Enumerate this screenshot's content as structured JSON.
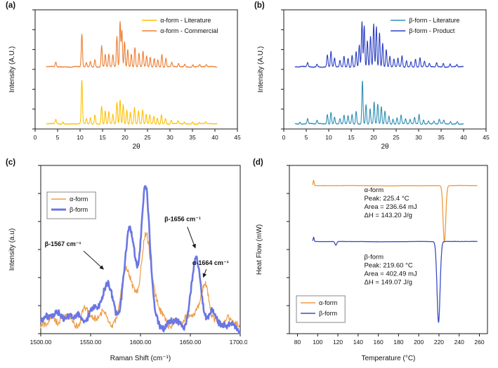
{
  "chart_data": [
    {
      "id": "xrd-alpha",
      "panel_label": "(a)",
      "type": "line",
      "kind": "xrd",
      "xlabel": "2θ",
      "ylabel": "Intensity (A.U.)",
      "xlim": [
        0,
        45
      ],
      "ylim": [
        0,
        2.78
      ],
      "xticks": [
        0,
        5,
        10,
        15,
        20,
        25,
        30,
        35,
        40,
        45
      ],
      "xtick_labels": [
        "0",
        "5",
        "10",
        "15",
        "20",
        "25",
        "30",
        "35",
        "40",
        "45"
      ],
      "legend": {
        "position": "top-right",
        "border": false,
        "entries": [
          {
            "label": "α-form - Literature",
            "color": "#FFC000",
            "lw": 1.5
          },
          {
            "label": "α-form - Commercial",
            "color": "#ED7D31",
            "lw": 1.5
          }
        ]
      },
      "series": [
        {
          "name": "alpha-literature",
          "color": "#FFC000",
          "lw": 1.1,
          "baseline": 0.12,
          "noise": 0.012,
          "seed": 11,
          "xstart": 2.5,
          "xend": 40.5,
          "n": 1300,
          "peak_width": 0.13,
          "peaks": [
            [
              4.6,
              0.1
            ],
            [
              6.2,
              0.05
            ],
            [
              10.4,
              1.0
            ],
            [
              11.4,
              0.12
            ],
            [
              12.3,
              0.15
            ],
            [
              13.3,
              0.2
            ],
            [
              14.8,
              0.42
            ],
            [
              15.6,
              0.3
            ],
            [
              16.4,
              0.28
            ],
            [
              17.3,
              0.22
            ],
            [
              18.2,
              0.5
            ],
            [
              18.9,
              0.55
            ],
            [
              19.6,
              0.45
            ],
            [
              20.4,
              0.32
            ],
            [
              21.2,
              0.28
            ],
            [
              22.1,
              0.38
            ],
            [
              23.0,
              0.3
            ],
            [
              23.9,
              0.32
            ],
            [
              24.7,
              0.22
            ],
            [
              25.5,
              0.2
            ],
            [
              26.4,
              0.18
            ],
            [
              27.2,
              0.14
            ],
            [
              28.1,
              0.22
            ],
            [
              29.0,
              0.12
            ],
            [
              30.3,
              0.08
            ],
            [
              31.8,
              0.06
            ],
            [
              33.2,
              0.05
            ],
            [
              35.0,
              0.05
            ],
            [
              36.5,
              0.04
            ],
            [
              38.0,
              0.04
            ]
          ]
        },
        {
          "name": "alpha-commercial",
          "color": "#ED7D31",
          "lw": 1.1,
          "baseline": 1.45,
          "noise": 0.012,
          "seed": 5,
          "xstart": 2.5,
          "xend": 40.5,
          "n": 1300,
          "peak_width": 0.13,
          "peaks": [
            [
              4.6,
              0.12
            ],
            [
              10.4,
              0.75
            ],
            [
              11.4,
              0.1
            ],
            [
              12.3,
              0.12
            ],
            [
              13.3,
              0.18
            ],
            [
              14.8,
              0.5
            ],
            [
              15.6,
              0.28
            ],
            [
              16.4,
              0.3
            ],
            [
              17.3,
              0.28
            ],
            [
              18.2,
              0.7
            ],
            [
              18.9,
              1.05
            ],
            [
              19.3,
              0.85
            ],
            [
              19.9,
              0.6
            ],
            [
              20.6,
              0.4
            ],
            [
              21.4,
              0.3
            ],
            [
              22.2,
              0.45
            ],
            [
              23.1,
              0.32
            ],
            [
              24.0,
              0.35
            ],
            [
              24.8,
              0.25
            ],
            [
              25.6,
              0.22
            ],
            [
              26.5,
              0.2
            ],
            [
              27.3,
              0.16
            ],
            [
              28.2,
              0.3
            ],
            [
              29.1,
              0.2
            ],
            [
              30.4,
              0.1
            ],
            [
              31.9,
              0.08
            ],
            [
              33.3,
              0.06
            ],
            [
              35.1,
              0.06
            ],
            [
              36.6,
              0.05
            ],
            [
              38.1,
              0.05
            ]
          ]
        }
      ]
    },
    {
      "id": "xrd-beta",
      "panel_label": "(b)",
      "type": "line",
      "kind": "xrd",
      "xlabel": "2θ",
      "ylabel": "Intensity (A.U.)",
      "xlim": [
        0,
        45
      ],
      "ylim": [
        0,
        2.78
      ],
      "xticks": [
        0,
        5,
        10,
        15,
        20,
        25,
        30,
        35,
        40,
        45
      ],
      "xtick_labels": [
        "0",
        "5",
        "10",
        "15",
        "20",
        "25",
        "30",
        "35",
        "40",
        "45"
      ],
      "legend": {
        "position": "top-right",
        "border": false,
        "entries": [
          {
            "label": "β-form - Literature",
            "color": "#2E8FB5",
            "lw": 1.5
          },
          {
            "label": "β-form - Product",
            "color": "#2B3FC4",
            "lw": 1.5
          }
        ]
      },
      "series": [
        {
          "name": "beta-literature",
          "color": "#2E8FB5",
          "lw": 1.1,
          "baseline": 0.12,
          "noise": 0.012,
          "seed": 8,
          "xstart": 2.5,
          "xend": 40,
          "n": 1300,
          "peak_width": 0.13,
          "peaks": [
            [
              3.6,
              0.05
            ],
            [
              5.3,
              0.12
            ],
            [
              7.4,
              0.08
            ],
            [
              9.7,
              0.22
            ],
            [
              10.5,
              0.28
            ],
            [
              11.3,
              0.15
            ],
            [
              12.5,
              0.12
            ],
            [
              13.4,
              0.2
            ],
            [
              14.3,
              0.18
            ],
            [
              15.2,
              0.22
            ],
            [
              16.1,
              0.3
            ],
            [
              17.5,
              1.0
            ],
            [
              18.3,
              0.45
            ],
            [
              19.2,
              0.35
            ],
            [
              20.1,
              0.5
            ],
            [
              20.9,
              0.45
            ],
            [
              21.7,
              0.4
            ],
            [
              22.5,
              0.3
            ],
            [
              23.4,
              0.18
            ],
            [
              24.3,
              0.12
            ],
            [
              25.2,
              0.15
            ],
            [
              26.1,
              0.2
            ],
            [
              27.1,
              0.12
            ],
            [
              28.1,
              0.1
            ],
            [
              29.1,
              0.15
            ],
            [
              30.1,
              0.22
            ],
            [
              31.1,
              0.1
            ],
            [
              32.2,
              0.07
            ],
            [
              33.4,
              0.06
            ],
            [
              34.6,
              0.1
            ],
            [
              35.6,
              0.08
            ],
            [
              37.1,
              0.06
            ],
            [
              38.6,
              0.05
            ]
          ]
        },
        {
          "name": "beta-product",
          "color": "#2B3FC4",
          "lw": 1.1,
          "baseline": 1.45,
          "noise": 0.012,
          "seed": 4,
          "xstart": 2.5,
          "xend": 40,
          "n": 1300,
          "peak_width": 0.13,
          "peaks": [
            [
              5.3,
              0.1
            ],
            [
              7.4,
              0.06
            ],
            [
              9.7,
              0.28
            ],
            [
              10.5,
              0.35
            ],
            [
              11.3,
              0.2
            ],
            [
              12.5,
              0.15
            ],
            [
              13.4,
              0.25
            ],
            [
              14.3,
              0.2
            ],
            [
              15.2,
              0.28
            ],
            [
              16.1,
              0.35
            ],
            [
              16.8,
              0.5
            ],
            [
              17.4,
              1.05
            ],
            [
              17.9,
              0.95
            ],
            [
              18.6,
              0.6
            ],
            [
              19.3,
              0.7
            ],
            [
              20.0,
              1.0
            ],
            [
              20.6,
              0.95
            ],
            [
              21.3,
              0.8
            ],
            [
              22.0,
              0.55
            ],
            [
              22.8,
              0.4
            ],
            [
              23.6,
              0.25
            ],
            [
              24.5,
              0.18
            ],
            [
              25.4,
              0.2
            ],
            [
              26.3,
              0.25
            ],
            [
              27.3,
              0.15
            ],
            [
              28.3,
              0.12
            ],
            [
              29.3,
              0.18
            ],
            [
              30.3,
              0.22
            ],
            [
              31.3,
              0.12
            ],
            [
              32.4,
              0.08
            ],
            [
              34.0,
              0.1
            ],
            [
              35.5,
              0.09
            ],
            [
              37.0,
              0.07
            ],
            [
              38.5,
              0.05
            ]
          ]
        }
      ]
    },
    {
      "id": "raman",
      "panel_label": "(c)",
      "type": "line",
      "kind": "raman",
      "xlabel": "Raman Shift (cm⁻¹)",
      "ylabel": "Intensity (a.u)",
      "xlim": [
        1500,
        1700
      ],
      "ylim": [
        0,
        1.15
      ],
      "xticks": [
        1500,
        1550,
        1600,
        1650,
        1700
      ],
      "xtick_labels": [
        "1500.00",
        "1550.00",
        "1600.00",
        "1650.00",
        "1700.00"
      ],
      "legend": {
        "position": "top-left",
        "border": true,
        "entries": [
          {
            "label": "α-form",
            "color": "#ED9D43",
            "lw": 1.5
          },
          {
            "label": "β-form",
            "color": "#6B76E3",
            "lw": 3
          }
        ]
      },
      "annotations": [
        {
          "text": "β-1567 cm⁻¹",
          "text_xy": [
            1504,
            0.6
          ],
          "arrow": [
            [
              1543,
              0.565
            ],
            [
              1563,
              0.44
            ]
          ]
        },
        {
          "text": "β-1656 cm⁻¹",
          "text_xy": [
            1624,
            0.77
          ],
          "arrow": [
            [
              1647,
              0.73
            ],
            [
              1655,
              0.585
            ]
          ]
        },
        {
          "text": "α-1664 cm⁻¹",
          "text_xy": [
            1652,
            0.47
          ],
          "arrow": [
            [
              1666,
              0.44
            ],
            [
              1663,
              0.385
            ]
          ]
        }
      ],
      "series": [
        {
          "name": "alpha-form",
          "color": "#ED9D43",
          "lw": 1.2,
          "baseline": 0.06,
          "noise": 0.05,
          "seed": 7,
          "n": 420,
          "nf": [
            0.35,
            0.13,
            0.61
          ],
          "peaks": [
            [
              1524,
              0.06,
              6
            ],
            [
              1544,
              0.09,
              5
            ],
            [
              1560,
              0.06,
              5
            ],
            [
              1587,
              0.4,
              6
            ],
            [
              1606,
              0.6,
              5
            ],
            [
              1620,
              0.08,
              6
            ],
            [
              1646,
              0.06,
              5
            ],
            [
              1664,
              0.3,
              4
            ],
            [
              1681,
              0.05,
              6
            ]
          ]
        },
        {
          "name": "beta-form",
          "color": "#6B76E3",
          "lw": 2.6,
          "baseline": 0.06,
          "noise": 0.045,
          "seed": 3,
          "n": 420,
          "nf": [
            0.33,
            0.15,
            0.57
          ],
          "peaks": [
            [
              1512,
              0.07,
              6
            ],
            [
              1530,
              0.09,
              6
            ],
            [
              1553,
              0.1,
              5
            ],
            [
              1567,
              0.33,
              4.5
            ],
            [
              1589,
              0.66,
              5
            ],
            [
              1605,
              0.97,
              4.5
            ],
            [
              1656,
              0.47,
              4.5
            ],
            [
              1673,
              0.05,
              5
            ]
          ]
        }
      ]
    },
    {
      "id": "dsc",
      "panel_label": "(d)",
      "type": "line",
      "kind": "dsc",
      "xlabel": "Temperature (°C)",
      "ylabel": "Heat Flow (mW)",
      "xlim": [
        72,
        268
      ],
      "ylim": [
        -1.78,
        1.38
      ],
      "xticks": [
        80,
        100,
        120,
        140,
        160,
        180,
        200,
        220,
        240,
        260
      ],
      "xtick_labels": [
        "80",
        "100",
        "120",
        "140",
        "160",
        "180",
        "200",
        "220",
        "240",
        "260"
      ],
      "legend": {
        "position": "bottom-left",
        "border": true,
        "entries": [
          {
            "label": "α-form",
            "color": "#F09A3E",
            "lw": 1.6
          },
          {
            "label": "β-form",
            "color": "#3B4EC4",
            "lw": 1.6
          }
        ]
      },
      "text_blocks": [
        {
          "name": "alpha-peak-annotation",
          "lines": [
            "α-form",
            "Peak: 225.4 °C",
            "Area = 236.64 mJ",
            "ΔH = 143.20 J/g"
          ],
          "xy": [
            146,
            0.88
          ]
        },
        {
          "name": "beta-peak-annotation",
          "lines": [
            "β-form",
            "Peak: 219.60 °C",
            "Area = 402.49 mJ",
            "ΔH = 149.07 J/g"
          ],
          "xy": [
            146,
            -0.38
          ]
        }
      ],
      "series": [
        {
          "name": "alpha-form",
          "color": "#F09A3E",
          "lw": 1.3,
          "baseline": 1.0,
          "noise": 0.004,
          "seed": 2,
          "xstart": 95,
          "xend": 258,
          "n": 700,
          "nf": [
            0.05,
            0.11,
            0.23
          ],
          "peaks": [
            [
              96,
              0.1,
              0.5
            ],
            [
              225.4,
              -1.06,
              1.3
            ]
          ]
        },
        {
          "name": "beta-form",
          "color": "#3B4EC4",
          "lw": 1.3,
          "baseline": -0.05,
          "noise": 0.004,
          "seed": 9,
          "xstart": 95,
          "xend": 258,
          "n": 700,
          "nf": [
            0.05,
            0.11,
            0.23
          ],
          "peaks": [
            [
              96,
              0.08,
              0.5
            ],
            [
              118,
              -0.07,
              0.9
            ],
            [
              219.6,
              -1.52,
              1.5
            ]
          ]
        }
      ]
    }
  ]
}
